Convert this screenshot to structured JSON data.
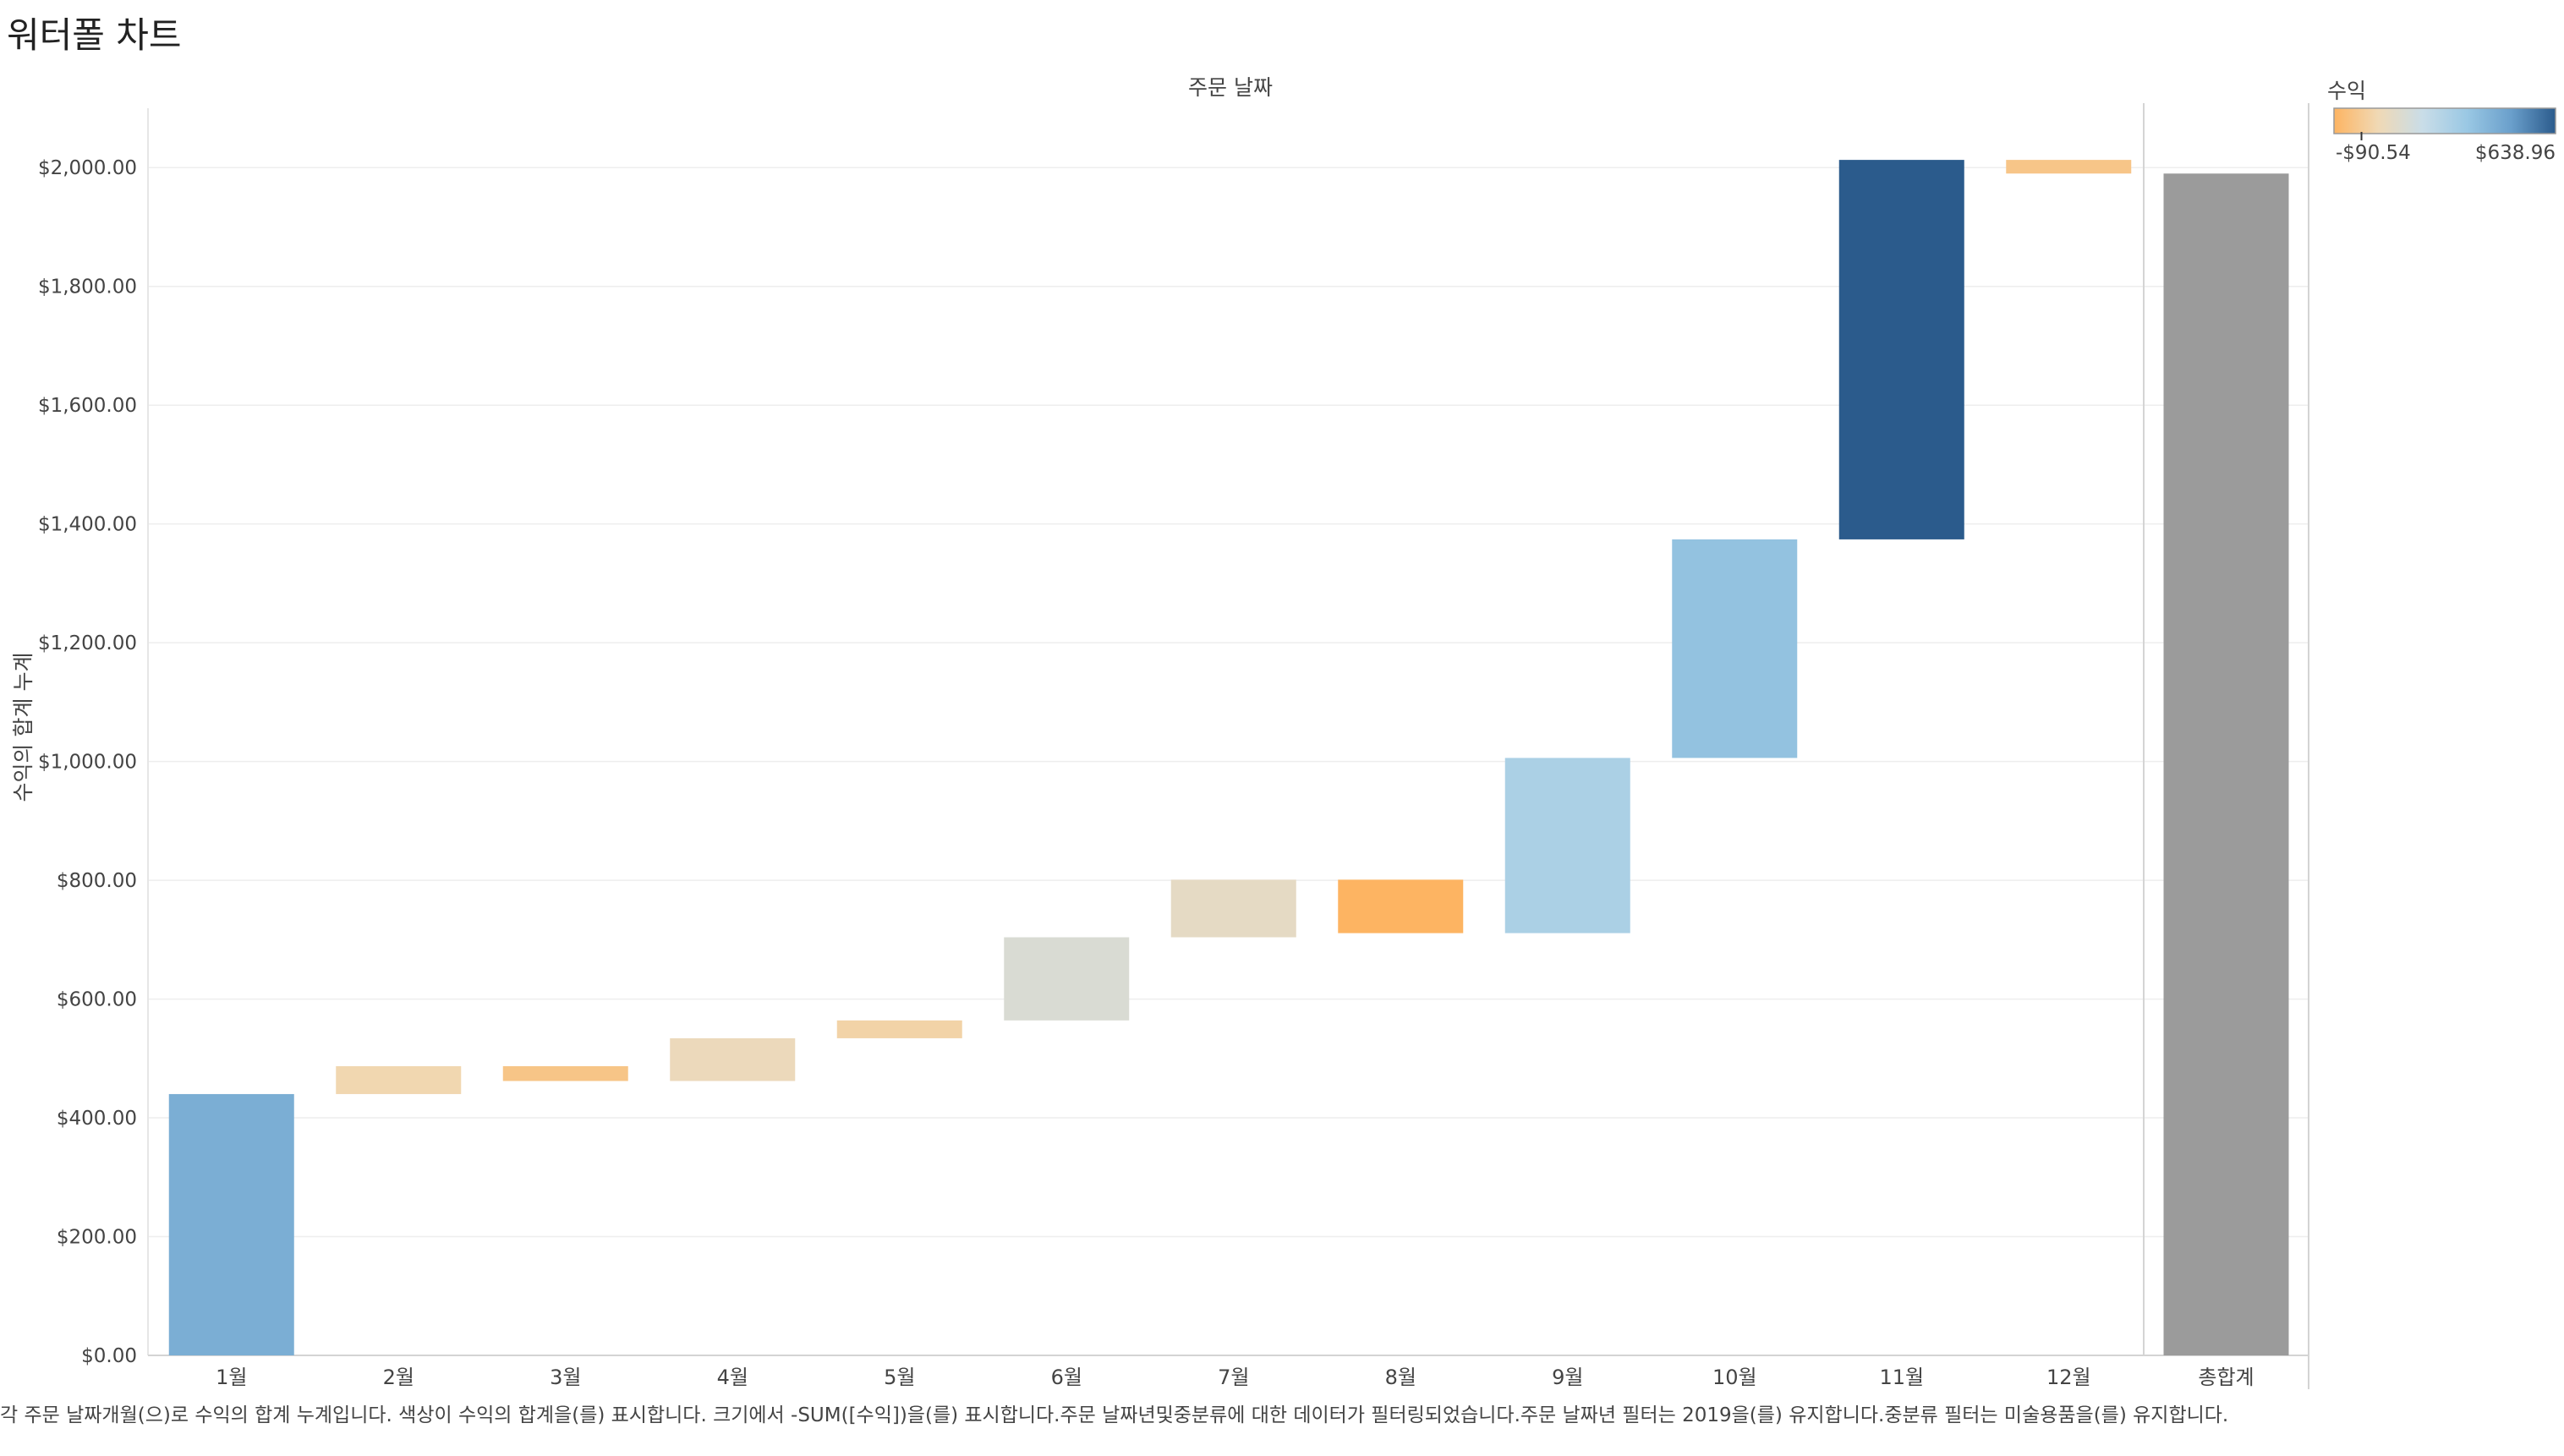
{
  "title": "워터폴 차트",
  "caption": "각 주문 날짜개월(으)로 수익의 합계 누계입니다. 색상이 수익의 합계을(를) 표시합니다. 크기에서 -SUM([수익])을(를) 표시합니다.주문 날짜년및중분류에 대한 데이터가 필터링되었습니다.주문 날짜년 필터는 2019을(를) 유지합니다.중분류 필터는 미술용품을(를) 유지합니다.",
  "legend": {
    "title": "수익",
    "min_label": "-$90.54",
    "max_label": "$638.96",
    "min": -90.54,
    "max": 638.96,
    "gradient": [
      "#fdb462",
      "#f0d9b5",
      "#c9dde8",
      "#9ac8e4",
      "#6a9fcb",
      "#2b5b8c"
    ]
  },
  "chart_data": {
    "type": "waterfall",
    "title": "",
    "column_header": "주문 날짜",
    "ylabel": "수익의 합계 누계",
    "ylim": [
      0,
      2100
    ],
    "yticks": [
      0,
      200,
      400,
      600,
      800,
      1000,
      1200,
      1400,
      1600,
      1800,
      2000
    ],
    "ytick_labels": [
      "$0.00",
      "$200.00",
      "$400.00",
      "$600.00",
      "$800.00",
      "$1,000.00",
      "$1,200.00",
      "$1,400.00",
      "$1,600.00",
      "$1,800.00",
      "$2,000.00"
    ],
    "categories": [
      "1월",
      "2월",
      "3월",
      "4월",
      "5월",
      "6월",
      "7월",
      "8월",
      "9월",
      "10월",
      "11월",
      "12월"
    ],
    "values": [
      440,
      47,
      -25,
      72,
      30,
      140,
      97,
      -90,
      295,
      368,
      639,
      -23
    ],
    "total_label": "총합계",
    "total_value": 1990,
    "total_color": "#9b9b9b",
    "grid": true
  }
}
